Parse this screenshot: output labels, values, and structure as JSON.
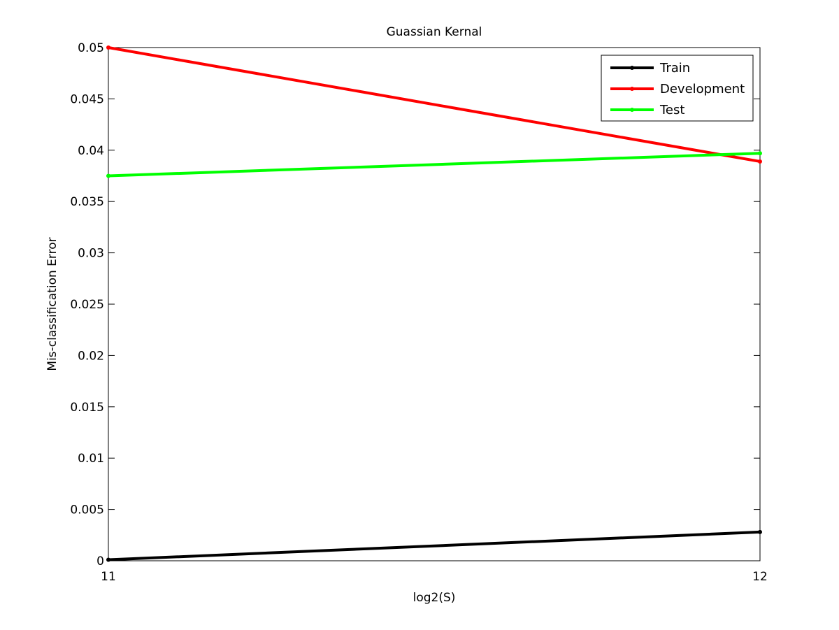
{
  "chart_data": {
    "type": "line",
    "title": "Guassian Kernal",
    "xlabel": "log2(S)",
    "ylabel": "Mis-classification Error",
    "xlim": [
      11,
      12
    ],
    "ylim": [
      0,
      0.05
    ],
    "x_ticks": [
      "11",
      "12"
    ],
    "y_ticks": [
      "0",
      "0.005",
      "0.01",
      "0.015",
      "0.02",
      "0.025",
      "0.03",
      "0.035",
      "0.04",
      "0.045",
      "0.05"
    ],
    "grid": false,
    "legend_position": "top-right",
    "series": [
      {
        "name": "Train",
        "color": "#000000",
        "x": [
          11,
          12
        ],
        "y": [
          0.0001,
          0.0028
        ]
      },
      {
        "name": "Development",
        "color": "#ff0000",
        "x": [
          11,
          12
        ],
        "y": [
          0.05,
          0.0389
        ]
      },
      {
        "name": "Test",
        "color": "#00ff00",
        "x": [
          11,
          12
        ],
        "y": [
          0.0375,
          0.0397
        ]
      }
    ]
  }
}
